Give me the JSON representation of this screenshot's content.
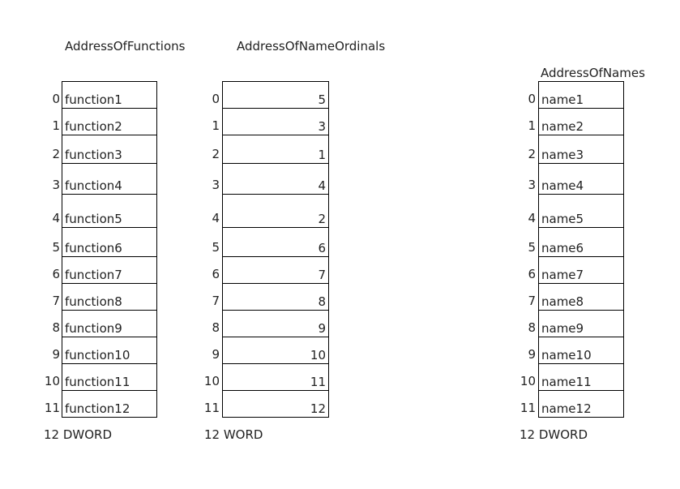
{
  "tables": [
    {
      "title": "AddressOfFunctions",
      "align": "left",
      "indices": [
        "0",
        "1",
        "2",
        "3",
        "4",
        "5",
        "6",
        "7",
        "8",
        "9",
        "10",
        "11"
      ],
      "cells": [
        "function1",
        "function2",
        "function3",
        "function4",
        "function5",
        "function6",
        "function7",
        "function8",
        "function9",
        "function10",
        "function11",
        "function12"
      ],
      "footer": "12 DWORD"
    },
    {
      "title": "AddressOfNameOrdinals",
      "align": "right",
      "indices": [
        "0",
        "1",
        "2",
        "3",
        "4",
        "5",
        "6",
        "7",
        "8",
        "9",
        "10",
        "11"
      ],
      "cells": [
        "5",
        "3",
        "1",
        "4",
        "2",
        "6",
        "7",
        "8",
        "9",
        "10",
        "11",
        "12"
      ],
      "footer": "12 WORD"
    },
    {
      "title": "AddressOfNames",
      "align": "left",
      "indices": [
        "0",
        "1",
        "2",
        "3",
        "4",
        "5",
        "6",
        "7",
        "8",
        "9",
        "10",
        "11"
      ],
      "cells": [
        "name1",
        "name2",
        "name3",
        "name4",
        "name5",
        "name6",
        "name7",
        "name8",
        "name9",
        "name10",
        "name11",
        "name12"
      ],
      "footer": "12 DWORD"
    }
  ]
}
